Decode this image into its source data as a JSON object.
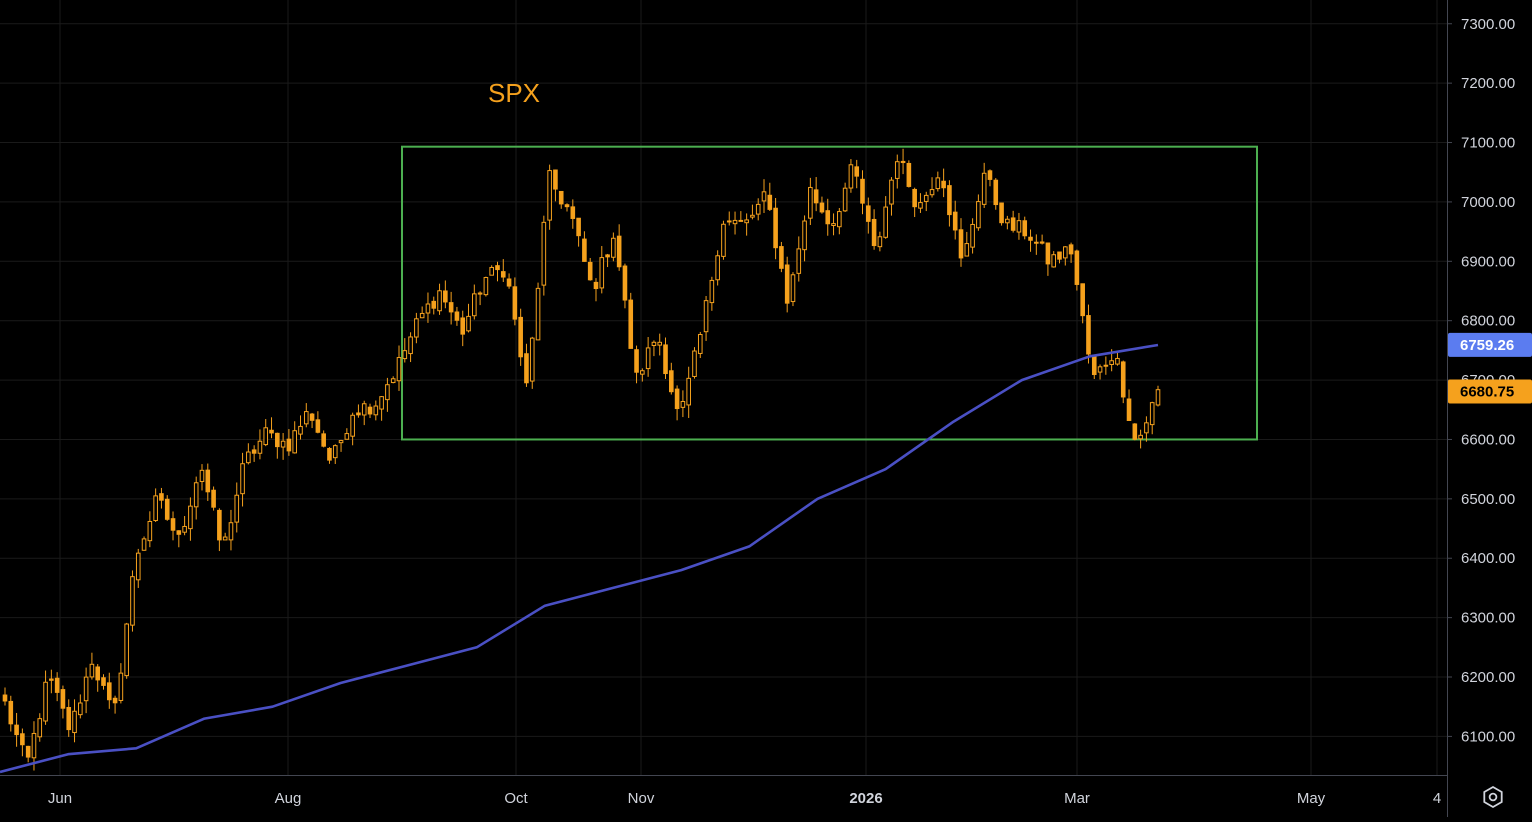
{
  "chart_data": {
    "type": "candlestick",
    "title": "SPX",
    "y_axis": {
      "min": 6035,
      "max": 7340,
      "ticks": [
        "6100.00",
        "6200.00",
        "6300.00",
        "6400.00",
        "6500.00",
        "6600.00",
        "6700.00",
        "6800.00",
        "6900.00",
        "7000.00",
        "7100.00",
        "7200.00",
        "7300.00"
      ]
    },
    "x_axis": {
      "labels": [
        "Jun",
        "Aug",
        "Oct",
        "Nov",
        "2026",
        "Mar",
        "May",
        "4"
      ]
    },
    "last_price": "6680.75",
    "moving_average_value": "6759.26",
    "range_box": {
      "low": 6600,
      "high": 7093
    },
    "colors": {
      "background": "#000000",
      "candle": "#f5a11d",
      "moving_average": "#4a50c4",
      "ma_tag": "#5b7cf0",
      "price_tag": "#f5a11d",
      "box": "#4caf50",
      "grid": "#1a1a1a",
      "axis_text": "#d1d4dc"
    },
    "price_path": [
      6155,
      6050,
      6200,
      6110,
      6230,
      6130,
      6400,
      6500,
      6430,
      6560,
      6410,
      6560,
      6610,
      6590,
      6650,
      6560,
      6650,
      6660,
      6720,
      6800,
      6850,
      6780,
      6870,
      6890,
      6680,
      7040,
      6980,
      6850,
      6950,
      6700,
      6780,
      6630,
      6780,
      6970,
      6960,
      7010,
      6830,
      7020,
      6960,
      7060,
      6910,
      7080,
      6990,
      7060,
      6890,
      7050,
      6960,
      6950,
      6900,
      6920,
      6700,
      6750,
      6590,
      6680
    ],
    "ma_path": [
      6040,
      6070,
      6080,
      6130,
      6150,
      6190,
      6220,
      6250,
      6320,
      6350,
      6380,
      6420,
      6500,
      6550,
      6630,
      6700,
      6740,
      6759
    ]
  }
}
